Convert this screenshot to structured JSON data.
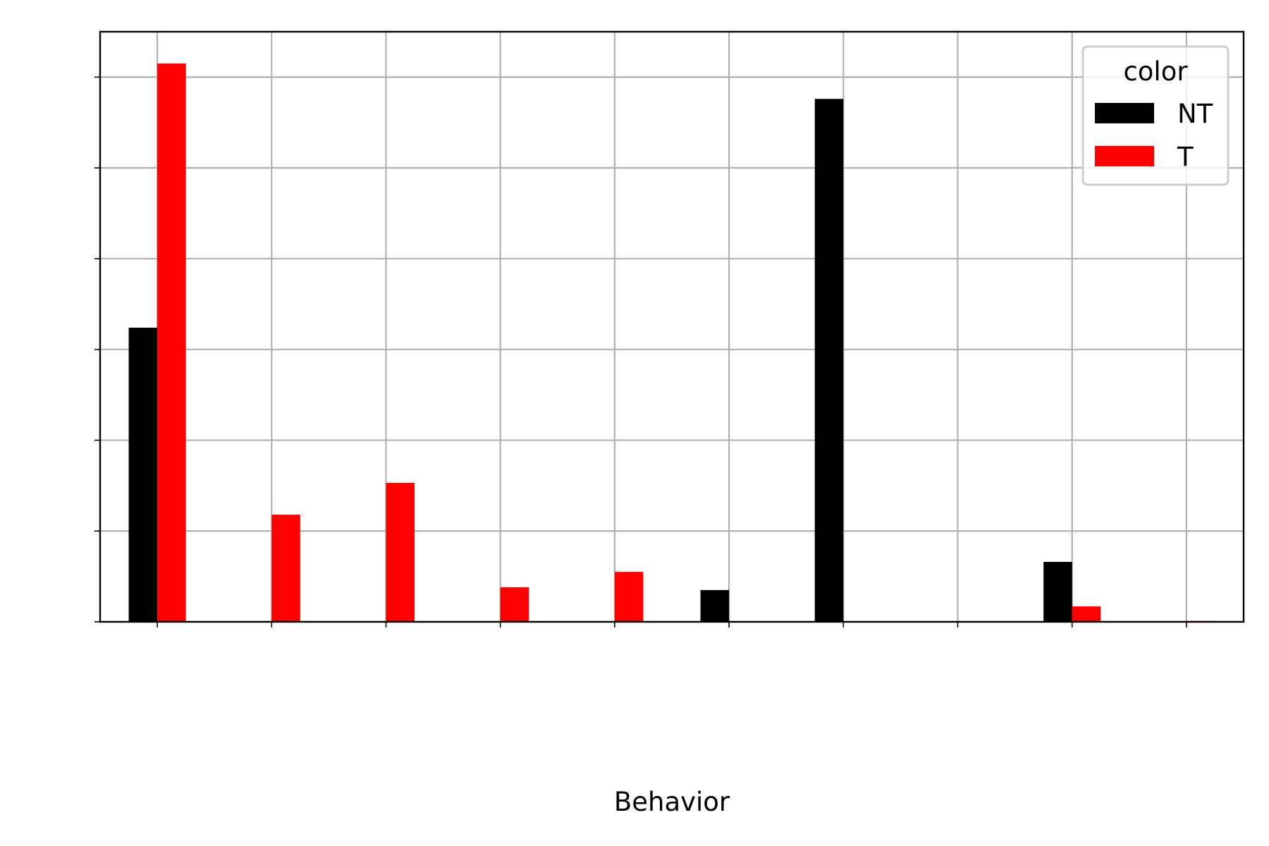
{
  "chart_data": {
    "type": "bar",
    "title": "",
    "xlabel": "Behavior",
    "ylabel": "",
    "categories": [
      "",
      "",
      "",
      "",
      "",
      "",
      "",
      "",
      "",
      ""
    ],
    "ylim": [
      0,
      0.65
    ],
    "yticks": [
      0,
      0.1,
      0.2,
      0.3,
      0.4,
      0.5,
      0.6
    ],
    "grid": true,
    "legend": {
      "title": "color",
      "placement": "top-right"
    },
    "series": [
      {
        "name": "NT",
        "color": "#000000",
        "values": [
          0.324,
          0,
          0,
          0,
          0,
          0.035,
          0.576,
          0,
          0.066,
          0
        ]
      },
      {
        "name": "T",
        "color": "#ff0000",
        "values": [
          0.615,
          0.118,
          0.153,
          0.038,
          0.055,
          0,
          0,
          0,
          0.017,
          0.001
        ]
      }
    ]
  }
}
